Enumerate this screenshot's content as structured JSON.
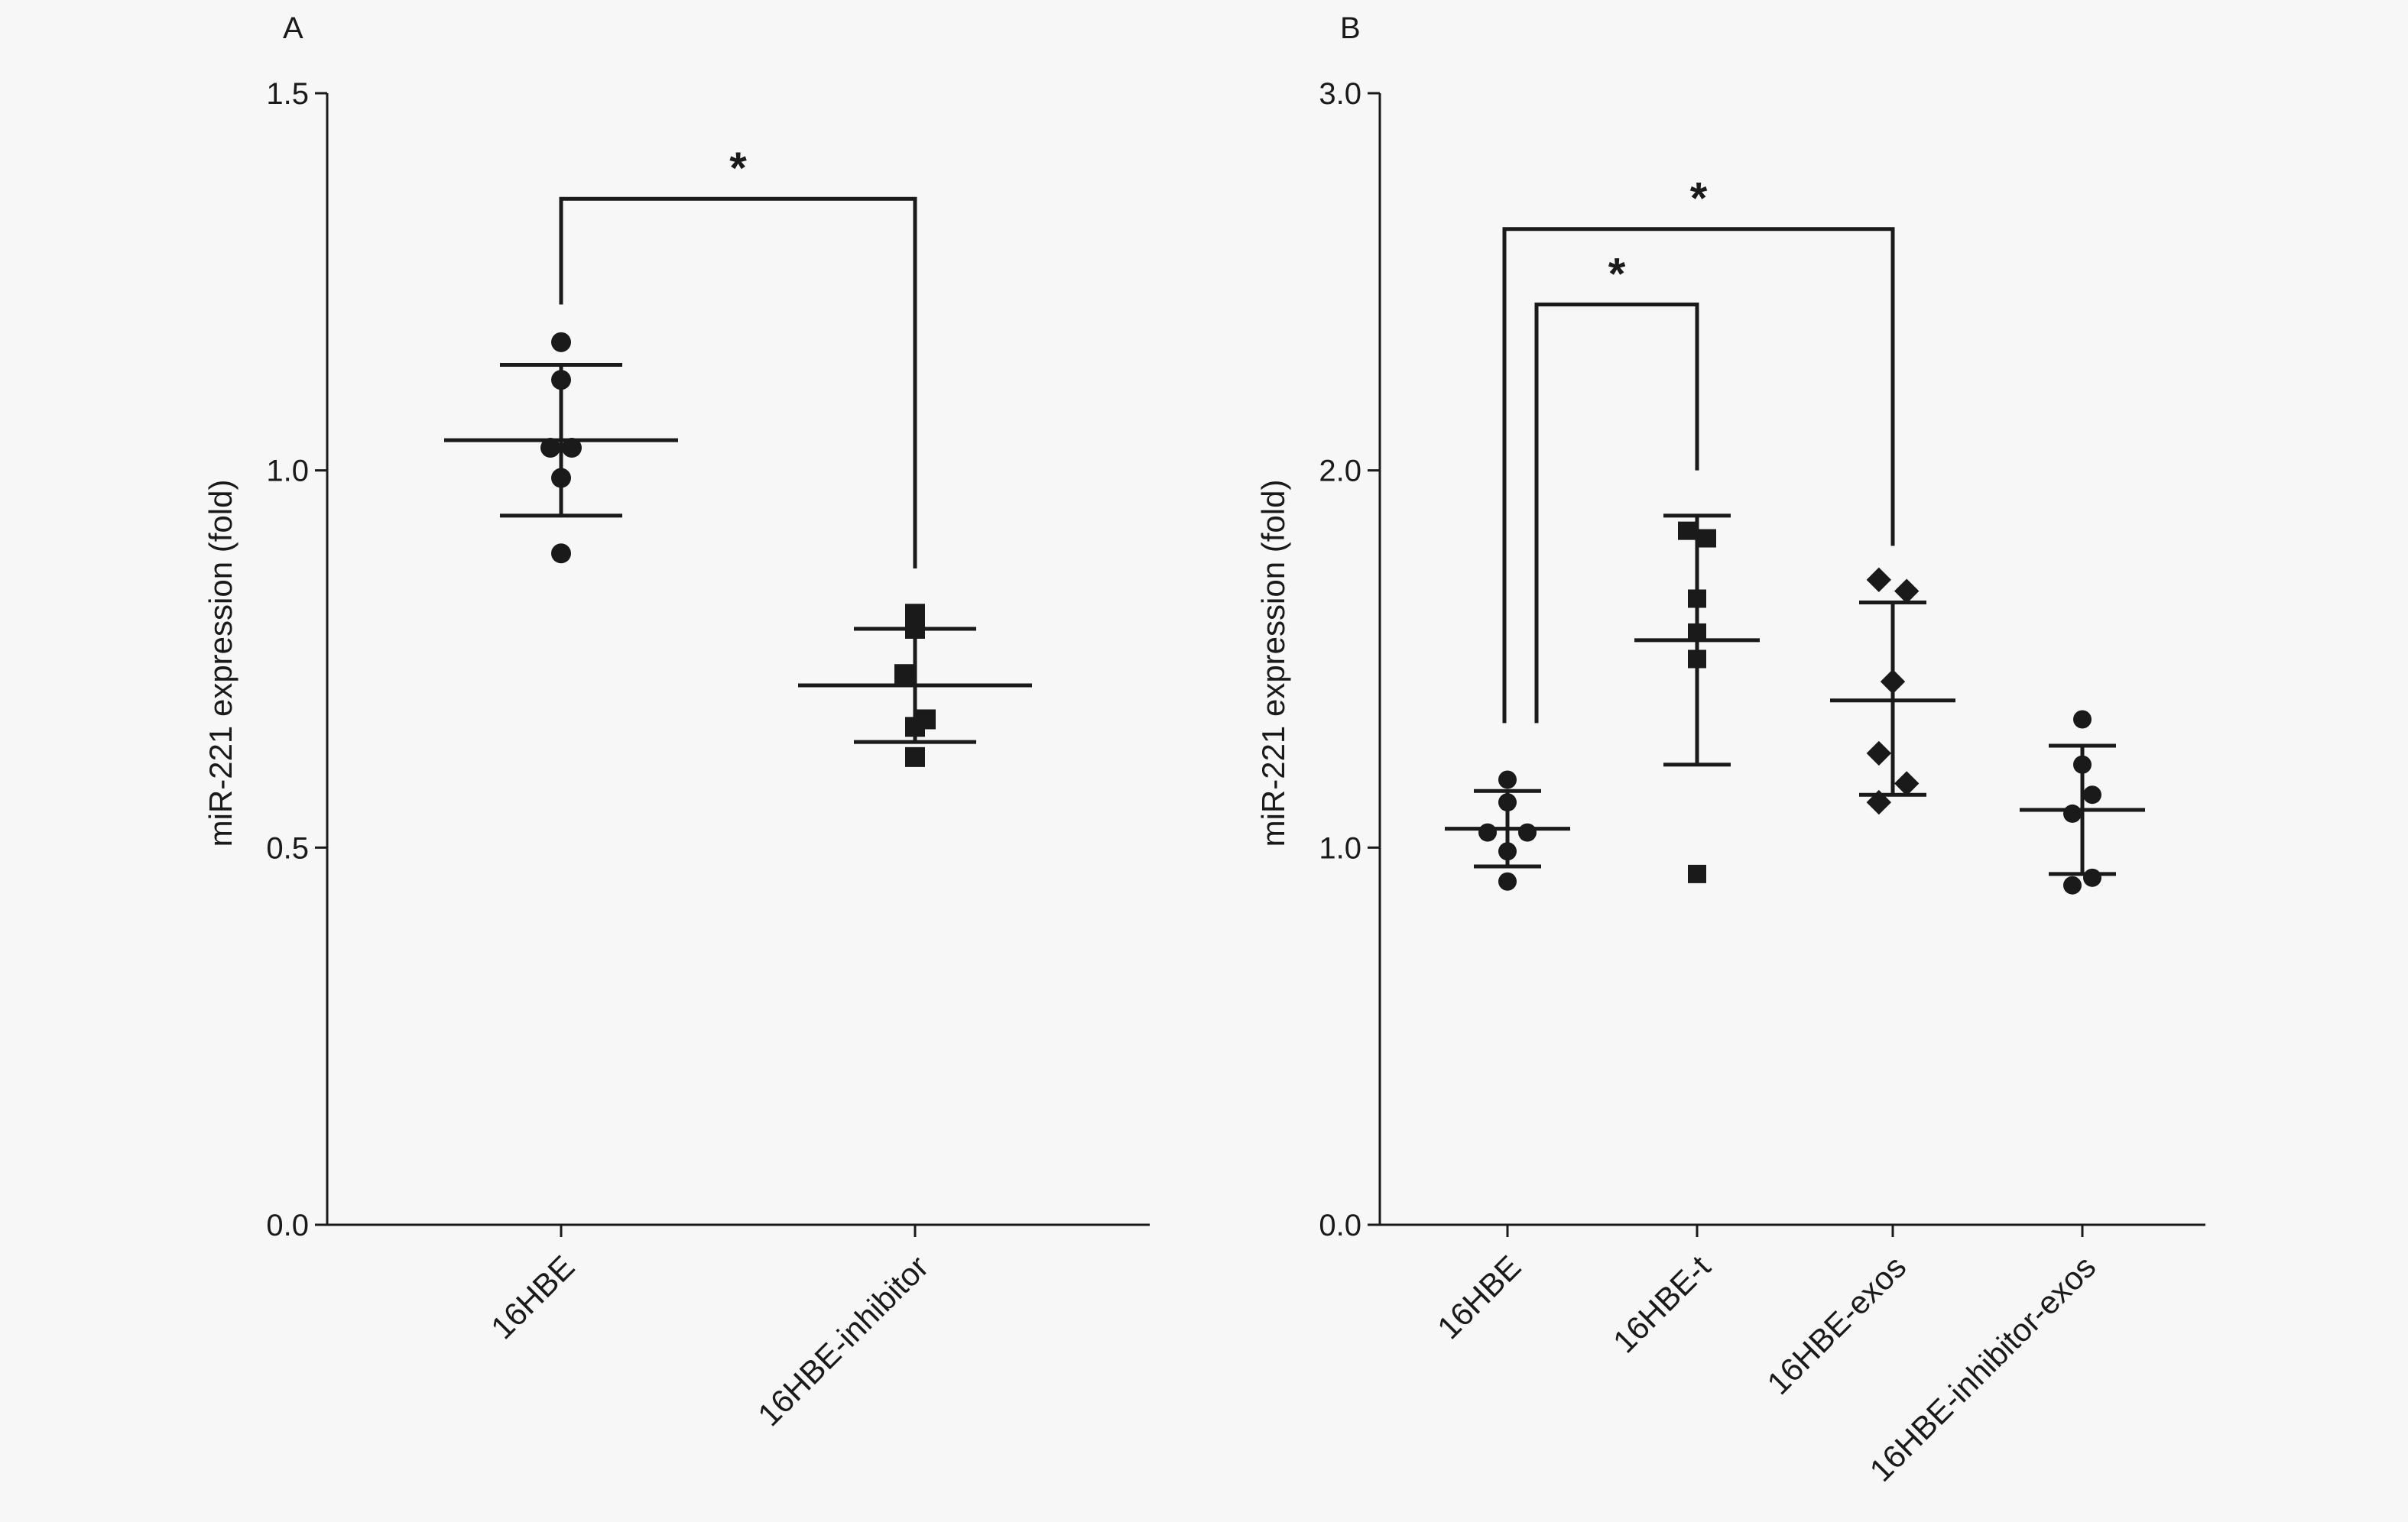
{
  "chart_data": [
    {
      "type": "scatter",
      "panel_label": "A",
      "ylabel": "miR-221 expression (fold)",
      "ylim": [
        0,
        1.5
      ],
      "yticks": [
        {
          "value": 0.0,
          "label": "0.0"
        },
        {
          "value": 0.5,
          "label": "0.5"
        },
        {
          "value": 1.0,
          "label": "1.0"
        },
        {
          "value": 1.5,
          "label": "1.5"
        }
      ],
      "categories": [
        "16HBE",
        "16HBE-inhibitor"
      ],
      "series": [
        {
          "category": "16HBE",
          "marker": "circle",
          "points": [
            1.17,
            1.12,
            1.03,
            1.03,
            0.99,
            0.89
          ],
          "mean": 1.04,
          "sd_low": 0.94,
          "sd_high": 1.14
        },
        {
          "category": "16HBE-inhibitor",
          "marker": "square",
          "points": [
            0.81,
            0.79,
            0.73,
            0.67,
            0.66,
            0.62
          ],
          "mean": 0.715,
          "sd_low": 0.64,
          "sd_high": 0.79
        }
      ],
      "significance": [
        {
          "from": "16HBE",
          "to": "16HBE-inhibitor",
          "label": "*",
          "bar_y": 1.36,
          "from_low": 1.22,
          "to_low": 0.87
        }
      ]
    },
    {
      "type": "scatter",
      "panel_label": "B",
      "ylabel": "miR-221 expression (fold)",
      "ylim": [
        0,
        3.0
      ],
      "yticks": [
        {
          "value": 0.0,
          "label": "0.0"
        },
        {
          "value": 1.0,
          "label": "1.0"
        },
        {
          "value": 2.0,
          "label": "2.0"
        },
        {
          "value": 3.0,
          "label": "3.0"
        }
      ],
      "categories": [
        "16HBE",
        "16HBE-t",
        "16HBE-exos",
        "16HBE-inhibitor-exos"
      ],
      "series": [
        {
          "category": "16HBE",
          "marker": "circle",
          "points": [
            1.18,
            1.12,
            1.04,
            1.04,
            0.99,
            0.91
          ],
          "mean": 1.05,
          "sd_low": 0.95,
          "sd_high": 1.15
        },
        {
          "category": "16HBE-t",
          "marker": "square",
          "points": [
            1.84,
            1.82,
            1.66,
            1.57,
            1.5,
            0.93
          ],
          "mean": 1.55,
          "sd_low": 1.22,
          "sd_high": 1.88
        },
        {
          "category": "16HBE-exos",
          "marker": "diamond",
          "points": [
            1.71,
            1.68,
            1.44,
            1.25,
            1.17,
            1.12
          ],
          "mean": 1.39,
          "sd_low": 1.14,
          "sd_high": 1.65
        },
        {
          "category": "16HBE-inhibitor-exos",
          "marker": "circle",
          "points": [
            1.34,
            1.22,
            1.14,
            1.09,
            0.92,
            0.9
          ],
          "mean": 1.1,
          "sd_low": 0.93,
          "sd_high": 1.27
        }
      ],
      "significance": [
        {
          "from": "16HBE",
          "to": "16HBE-t",
          "label": "*",
          "bar_y": 2.44,
          "from_low": 1.33,
          "to_low": 2.0
        },
        {
          "from": "16HBE",
          "to": "16HBE-exos",
          "label": "*",
          "bar_y": 2.64,
          "from_low": 1.33,
          "to_low": 1.8
        }
      ]
    }
  ]
}
